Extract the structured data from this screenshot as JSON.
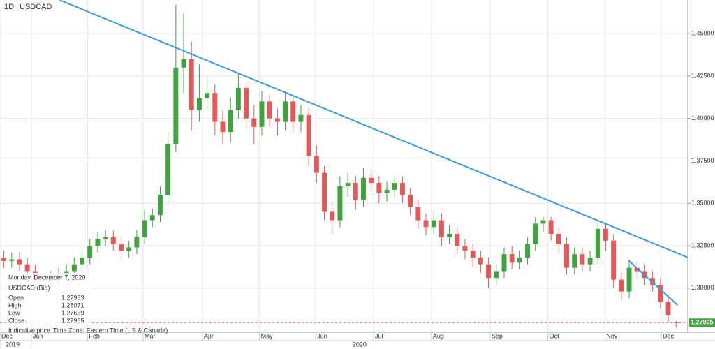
{
  "chart_data": {
    "type": "candlestick",
    "interval": "1D",
    "title": "USDCAD",
    "open": [
      1.318,
      1.316,
      1.317,
      1.314,
      1.31,
      1.305,
      1.304,
      1.306,
      1.308,
      1.31,
      1.314,
      1.318,
      1.325,
      1.329,
      1.33,
      1.326,
      1.322,
      1.324,
      1.33,
      1.34,
      1.343,
      1.355,
      1.385,
      1.43,
      1.435,
      1.405,
      1.412,
      1.415,
      1.398,
      1.392,
      1.405,
      1.418,
      1.4,
      1.395,
      1.41,
      1.4,
      1.398,
      1.41,
      1.398,
      1.402,
      1.378,
      1.368,
      1.345,
      1.34,
      1.36,
      1.362,
      1.352,
      1.365,
      1.362,
      1.356,
      1.358,
      1.362,
      1.355,
      1.348,
      1.34,
      1.336,
      1.34,
      1.33,
      1.332,
      1.325,
      1.322,
      1.318,
      1.314,
      1.306,
      1.31,
      1.32,
      1.315,
      1.318,
      1.326,
      1.338,
      1.34,
      1.332,
      1.326,
      1.312,
      1.32,
      1.314,
      1.318,
      1.335,
      1.328,
      1.305,
      1.298,
      1.312,
      1.31,
      1.306,
      1.302,
      1.292,
      1.27983
    ],
    "high": [
      1.322,
      1.321,
      1.321,
      1.318,
      1.314,
      1.309,
      1.31,
      1.312,
      1.314,
      1.318,
      1.322,
      1.329,
      1.333,
      1.334,
      1.334,
      1.33,
      1.328,
      1.334,
      1.346,
      1.347,
      1.36,
      1.392,
      1.467,
      1.462,
      1.445,
      1.432,
      1.425,
      1.42,
      1.405,
      1.412,
      1.427,
      1.422,
      1.408,
      1.416,
      1.414,
      1.406,
      1.416,
      1.414,
      1.408,
      1.406,
      1.384,
      1.372,
      1.35,
      1.366,
      1.368,
      1.366,
      1.371,
      1.37,
      1.366,
      1.363,
      1.366,
      1.366,
      1.359,
      1.352,
      1.344,
      1.345,
      1.344,
      1.337,
      1.336,
      1.329,
      1.326,
      1.322,
      1.318,
      1.314,
      1.324,
      1.325,
      1.322,
      1.33,
      1.342,
      1.342,
      1.342,
      1.336,
      1.33,
      1.324,
      1.324,
      1.322,
      1.34,
      1.338,
      1.332,
      1.309,
      1.316,
      1.316,
      1.314,
      1.31,
      1.306,
      1.296,
      1.28071
    ],
    "low": [
      1.312,
      1.312,
      1.31,
      1.306,
      1.301,
      1.3,
      1.3,
      1.302,
      1.304,
      1.306,
      1.31,
      1.314,
      1.321,
      1.325,
      1.322,
      1.318,
      1.318,
      1.32,
      1.326,
      1.336,
      1.339,
      1.35,
      1.38,
      1.415,
      1.393,
      1.398,
      1.405,
      1.39,
      1.385,
      1.386,
      1.4,
      1.394,
      1.385,
      1.39,
      1.395,
      1.39,
      1.393,
      1.392,
      1.392,
      1.372,
      1.362,
      1.34,
      1.332,
      1.336,
      1.354,
      1.346,
      1.348,
      1.357,
      1.35,
      1.351,
      1.353,
      1.35,
      1.343,
      1.335,
      1.331,
      1.332,
      1.325,
      1.326,
      1.32,
      1.317,
      1.313,
      1.309,
      1.3,
      1.302,
      1.306,
      1.311,
      1.311,
      1.314,
      1.322,
      1.333,
      1.328,
      1.321,
      1.308,
      1.308,
      1.31,
      1.31,
      1.314,
      1.322,
      1.3,
      1.293,
      1.294,
      1.305,
      1.302,
      1.298,
      1.288,
      1.28,
      1.27659
    ],
    "close": [
      1.316,
      1.317,
      1.314,
      1.31,
      1.305,
      1.304,
      1.306,
      1.308,
      1.31,
      1.314,
      1.318,
      1.325,
      1.329,
      1.33,
      1.326,
      1.322,
      1.324,
      1.33,
      1.34,
      1.343,
      1.355,
      1.385,
      1.43,
      1.435,
      1.405,
      1.412,
      1.415,
      1.398,
      1.392,
      1.405,
      1.418,
      1.4,
      1.395,
      1.41,
      1.4,
      1.398,
      1.41,
      1.398,
      1.402,
      1.378,
      1.368,
      1.345,
      1.34,
      1.36,
      1.362,
      1.352,
      1.365,
      1.362,
      1.356,
      1.358,
      1.362,
      1.355,
      1.348,
      1.34,
      1.336,
      1.34,
      1.33,
      1.332,
      1.325,
      1.322,
      1.318,
      1.314,
      1.306,
      1.31,
      1.32,
      1.315,
      1.318,
      1.326,
      1.338,
      1.34,
      1.332,
      1.326,
      1.312,
      1.32,
      1.314,
      1.318,
      1.335,
      1.328,
      1.305,
      1.298,
      1.312,
      1.31,
      1.306,
      1.302,
      1.292,
      1.284,
      1.27965
    ],
    "up_color": "#3fa33f",
    "down_color": "#e45858",
    "xlim": [
      0,
      88
    ],
    "xticks": [
      {
        "value": 0,
        "label": "Dec"
      },
      {
        "value": 4.0,
        "label": "Jan"
      },
      {
        "value": 11.2,
        "label": "Feb"
      },
      {
        "value": 18.3,
        "label": "Mar"
      },
      {
        "value": 25.9,
        "label": "Apr"
      },
      {
        "value": 33.2,
        "label": "May"
      },
      {
        "value": 40.4,
        "label": "Jun"
      },
      {
        "value": 47.8,
        "label": "Jul"
      },
      {
        "value": 55.2,
        "label": "Aug"
      },
      {
        "value": 62.7,
        "label": "Sep"
      },
      {
        "value": 70.1,
        "label": "Oct"
      },
      {
        "value": 77.4,
        "label": "Nov"
      },
      {
        "value": 84.6,
        "label": "Dec"
      }
    ],
    "year_labels": [
      {
        "value": 0,
        "label": "2019"
      },
      {
        "value": 4.0,
        "label": "2020"
      }
    ],
    "ylim": [
      1.274,
      1.4698
    ],
    "yticks": [
      {
        "value": 1.3,
        "label": "1.30000"
      },
      {
        "value": 1.325,
        "label": "1.32500"
      },
      {
        "value": 1.35,
        "label": "1.35000"
      },
      {
        "value": 1.375,
        "label": "1.37500"
      },
      {
        "value": 1.4,
        "label": "1.40000"
      },
      {
        "value": 1.425,
        "label": "1.42500"
      },
      {
        "value": 1.45,
        "label": "1.45000"
      }
    ],
    "grid": true,
    "trend_color": "#3d9be0",
    "trend_lines": [
      {
        "x": [
          7.6,
          88
        ],
        "y": [
          1.4698,
          1.3181
        ]
      },
      {
        "x": [
          80.4,
          86.7
        ],
        "y": [
          1.3164,
          1.29
        ]
      }
    ],
    "info_panel": {
      "date": "Monday, December 7, 2020",
      "symbol": "USDCAD (Bid)",
      "labels": [
        "Open",
        "High",
        "Low",
        "Close"
      ],
      "note": "Indicative price",
      "timezone": "Time Zone: Eastern Time (US & Canada)"
    }
  }
}
